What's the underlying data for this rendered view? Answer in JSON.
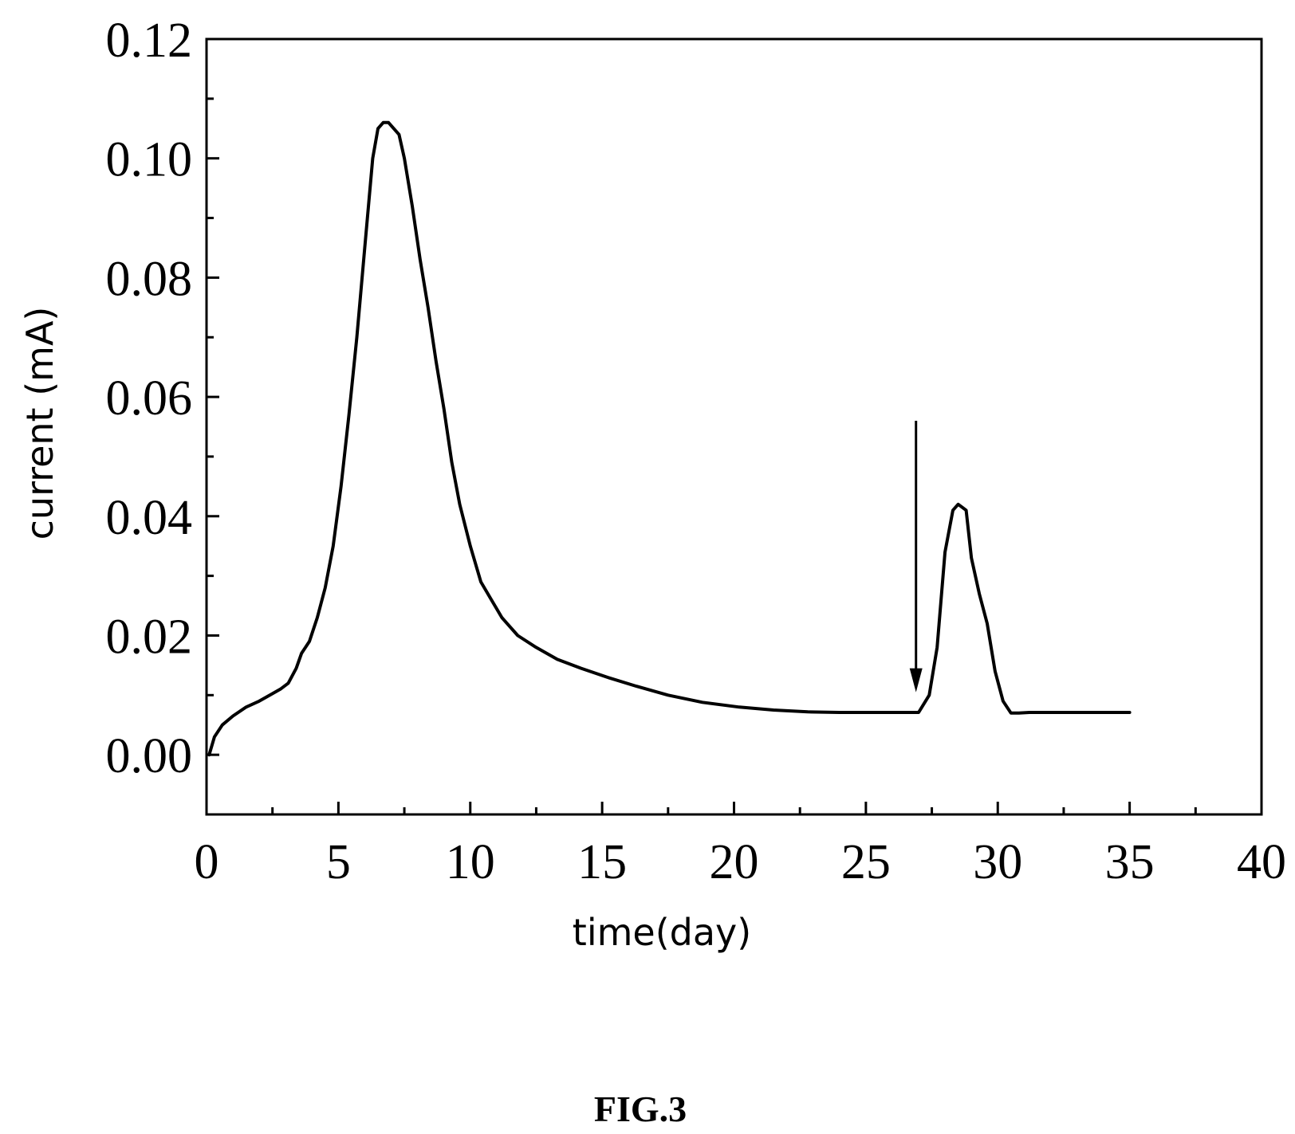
{
  "chart_data": {
    "type": "line",
    "xlabel": "time(day)",
    "ylabel": "current (mA)",
    "xlim": [
      0,
      40
    ],
    "ylim": [
      -0.01,
      0.12
    ],
    "x_ticks": [
      0,
      5,
      10,
      15,
      20,
      25,
      30,
      35,
      40
    ],
    "x_tick_labels": [
      "0",
      "5",
      "10",
      "15",
      "20",
      "25",
      "30",
      "35",
      "40"
    ],
    "y_ticks": [
      0.0,
      0.02,
      0.04,
      0.06,
      0.08,
      0.1,
      0.12
    ],
    "y_tick_labels": [
      "0.00",
      "0.02",
      "0.04",
      "0.06",
      "0.08",
      "0.10",
      "0.12"
    ],
    "x_minor_step": 2.5,
    "y_minor_step": 0.01,
    "grid": false,
    "legend": "none",
    "series": [
      {
        "color": "#000000",
        "x": [
          0.1,
          0.3,
          0.6,
          1.0,
          1.5,
          2.0,
          2.4,
          2.8,
          3.1,
          3.4,
          3.6,
          3.9,
          4.2,
          4.5,
          4.8,
          5.1,
          5.4,
          5.7,
          6.0,
          6.3,
          6.5,
          6.7,
          6.9,
          7.1,
          7.3,
          7.5,
          7.8,
          8.1,
          8.4,
          8.7,
          9.0,
          9.3,
          9.6,
          10.0,
          10.4,
          10.8,
          11.2,
          11.8,
          12.5,
          13.3,
          14.2,
          15.2,
          16.3,
          17.5,
          18.8,
          20.2,
          21.5,
          22.8,
          24.0,
          25.0,
          26.0,
          27.0,
          27.4,
          27.7,
          28.0,
          28.3,
          28.5,
          28.8,
          29.0,
          29.3,
          29.6,
          29.9,
          30.2,
          30.5,
          30.8,
          31.2,
          32.0,
          33.0,
          34.0,
          35.0
        ],
        "y": [
          0.0,
          0.003,
          0.005,
          0.0065,
          0.008,
          0.009,
          0.01,
          0.011,
          0.012,
          0.0145,
          0.017,
          0.019,
          0.023,
          0.028,
          0.035,
          0.045,
          0.057,
          0.07,
          0.085,
          0.1,
          0.105,
          0.106,
          0.106,
          0.105,
          0.104,
          0.1,
          0.092,
          0.083,
          0.075,
          0.066,
          0.058,
          0.049,
          0.042,
          0.035,
          0.029,
          0.026,
          0.023,
          0.02,
          0.018,
          0.016,
          0.0145,
          0.013,
          0.0115,
          0.01,
          0.0088,
          0.008,
          0.0075,
          0.0072,
          0.0071,
          0.0071,
          0.0071,
          0.0071,
          0.01,
          0.018,
          0.034,
          0.041,
          0.042,
          0.041,
          0.033,
          0.027,
          0.022,
          0.014,
          0.009,
          0.007,
          0.007,
          0.0071,
          0.0071,
          0.0071,
          0.0071,
          0.0071
        ]
      }
    ],
    "annotations": [
      {
        "type": "arrow",
        "x": 26.9,
        "y_start": 0.056,
        "y_end": 0.0105,
        "direction": "down"
      }
    ]
  },
  "figure": {
    "caption": "FIG.3"
  }
}
